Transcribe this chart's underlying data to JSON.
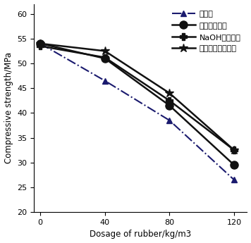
{
  "x": [
    0,
    40,
    80,
    120
  ],
  "series": [
    {
      "label": "未改性",
      "values": [
        54,
        46.5,
        38.5,
        26.5
      ],
      "color": "#1a1a6e",
      "linestyle": "-.",
      "marker": "^",
      "markersize": 6,
      "linewidth": 1.5,
      "markerfacecolor": "#1a1a6e"
    },
    {
      "label": "无水乙醇改性",
      "values": [
        54,
        51.0,
        41.5,
        29.5
      ],
      "color": "#111111",
      "linestyle": "-",
      "marker": "o",
      "markersize": 8,
      "linewidth": 1.8,
      "markerfacecolor": "#111111"
    },
    {
      "label": "NaOH溶液改性",
      "values": [
        53.5,
        51.2,
        42.5,
        32.5
      ],
      "color": "#111111",
      "linestyle": "-",
      "marker": "P",
      "markersize": 7,
      "linewidth": 1.8,
      "markerfacecolor": "#111111"
    },
    {
      "label": "酸性高锰酸钾改性",
      "values": [
        54,
        52.5,
        44.0,
        32.5
      ],
      "color": "#111111",
      "linestyle": "-",
      "marker": "*",
      "markersize": 9,
      "linewidth": 1.8,
      "markerfacecolor": "#111111"
    }
  ],
  "xlabel": "Dosage of rubber/kg/m3",
  "ylabel": "Compressive strength/MPa",
  "xlim": [
    -4,
    128
  ],
  "ylim": [
    20,
    62
  ],
  "yticks": [
    20,
    25,
    30,
    35,
    40,
    45,
    50,
    55,
    60
  ],
  "xticks": [
    0,
    40,
    80,
    120
  ],
  "legend_labels": [
    "未改性",
    "无水乙醇改性",
    "NaOH溶液改性",
    "酸性高锰酸钾改性"
  ],
  "xlabel_fontsize": 8.5,
  "ylabel_fontsize": 8.5,
  "tick_fontsize": 8,
  "legend_fontsize": 8
}
